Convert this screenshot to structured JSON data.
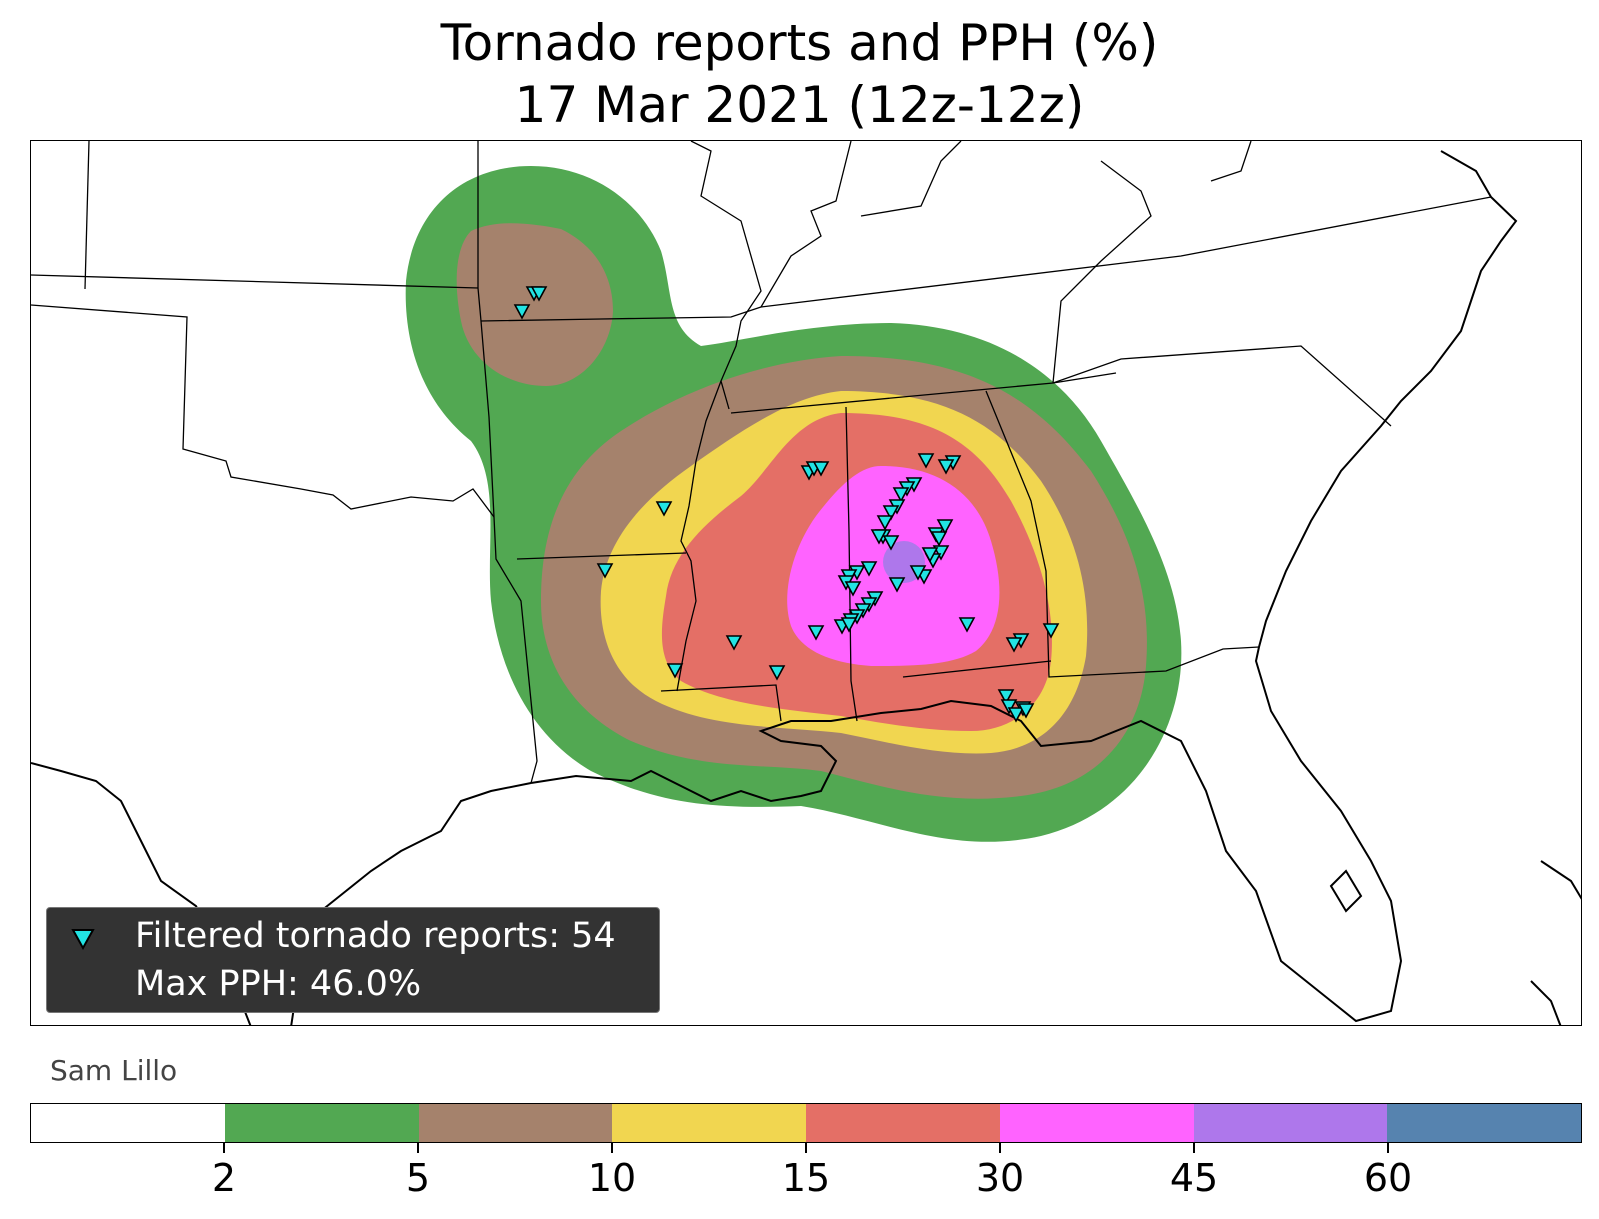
{
  "title": {
    "line1": "Tornado reports and PPH (%)",
    "line2": "17 Mar 2021 (12z-12z)"
  },
  "legend": {
    "reports_label": "Filtered tornado reports: 54",
    "max_label": "Max PPH: 46.0%",
    "marker_icon": "cyan-down-triangle-icon",
    "marker_color": "#22e3e3"
  },
  "credit": "Sam Lillo",
  "colorbar": {
    "colors": [
      "#ffffff",
      "#52a852",
      "#a5826c",
      "#f1d650",
      "#e46f66",
      "#ff63ff",
      "#ae77eb",
      "#5683af"
    ],
    "ticks": [
      "2",
      "5",
      "10",
      "15",
      "30",
      "45",
      "60"
    ]
  },
  "chart_data": {
    "type": "map",
    "contour_levels_pct": [
      2,
      5,
      10,
      15,
      30,
      45,
      60
    ],
    "filtered_tornado_reports": 54,
    "max_pph_pct": 46.0
  }
}
